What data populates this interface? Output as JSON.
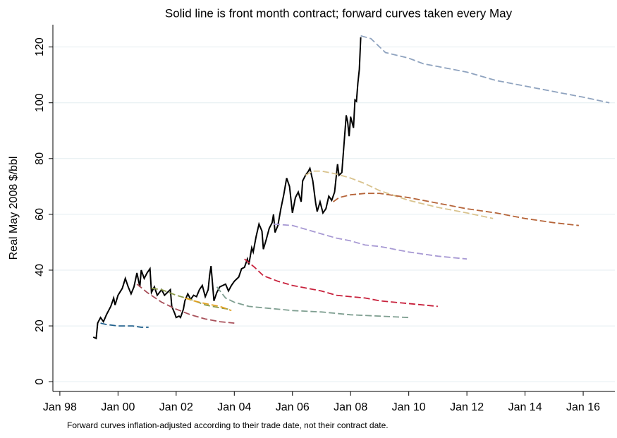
{
  "chart_data": {
    "type": "line",
    "title": "Solid line is front month contract; forward curves taken every May",
    "y_label": "Real May 2008 $/bbl",
    "note": "Forward curves inflation-adjusted according to their trade date, not their contract date.",
    "xlim": [
      1997.76,
      2017.09
    ],
    "ylim": [
      -3.5,
      128
    ],
    "xticks": [
      {
        "value": 1998,
        "label": "Jan 98"
      },
      {
        "value": 2000,
        "label": "Jan 00"
      },
      {
        "value": 2002,
        "label": "Jan 02"
      },
      {
        "value": 2004,
        "label": "Jan 04"
      },
      {
        "value": 2006,
        "label": "Jan 06"
      },
      {
        "value": 2008,
        "label": "Jan 08"
      },
      {
        "value": 2010,
        "label": "Jan 10"
      },
      {
        "value": 2012,
        "label": "Jan 12"
      },
      {
        "value": 2014,
        "label": "Jan 14"
      },
      {
        "value": 2016,
        "label": "Jan 16"
      }
    ],
    "yticks": [
      0,
      20,
      40,
      60,
      80,
      100,
      120
    ],
    "grid": true,
    "series": [
      {
        "color": "#000000",
        "dash": false,
        "x": [
          1999.15,
          1999.25,
          1999.3,
          1999.4,
          1999.5,
          1999.6,
          1999.75,
          1999.85,
          1999.9,
          2000.0,
          2000.15,
          2000.25,
          2000.35,
          2000.45,
          2000.55,
          2000.65,
          2000.75,
          2000.8,
          2000.9,
          2001.0,
          2001.1,
          2001.15,
          2001.25,
          2001.35,
          2001.5,
          2001.6,
          2001.7,
          2001.8,
          2001.85,
          2001.95,
          2002.0,
          2002.1,
          2002.15,
          2002.25,
          2002.3,
          2002.4,
          2002.5,
          2002.6,
          2002.7,
          2002.8,
          2002.9,
          2003.0,
          2003.1,
          2003.15,
          2003.2,
          2003.3,
          2003.4,
          2003.5,
          2003.7,
          2003.8,
          2003.9,
          2004.0,
          2004.15,
          2004.25,
          2004.35,
          2004.45,
          2004.5,
          2004.6,
          2004.65,
          2004.75,
          2004.85,
          2004.95,
          2005.0,
          2005.1,
          2005.2,
          2005.3,
          2005.35,
          2005.4,
          2005.5,
          2005.6,
          2005.7,
          2005.8,
          2005.9,
          2006.0,
          2006.1,
          2006.2,
          2006.3,
          2006.35,
          2006.45,
          2006.55,
          2006.6,
          2006.7,
          2006.8,
          2006.85,
          2006.95,
          2007.05,
          2007.15,
          2007.25,
          2007.35,
          2007.45,
          2007.55,
          2007.6,
          2007.7,
          2007.75,
          2007.85,
          2007.9,
          2007.95,
          2008.0,
          2008.1,
          2008.15,
          2008.2,
          2008.25,
          2008.3,
          2008.35
        ],
        "values": [
          16,
          15.5,
          21,
          23,
          21.5,
          24,
          27,
          30,
          27.5,
          31,
          33.5,
          37,
          34,
          31.5,
          34,
          39,
          34,
          40,
          37,
          39,
          40.5,
          32,
          34,
          31,
          33,
          31,
          32,
          33,
          27,
          24.5,
          23,
          23.5,
          23,
          26,
          29,
          31.5,
          29.5,
          31,
          30.5,
          33,
          34.5,
          30.5,
          33,
          38,
          41.5,
          29,
          32,
          34,
          35,
          32.5,
          34.5,
          36,
          37.5,
          40.5,
          41,
          44,
          42,
          48,
          46.5,
          52,
          56.5,
          54,
          47.5,
          51,
          55,
          57,
          60,
          53.5,
          56,
          62,
          67,
          73,
          70,
          60.5,
          66,
          68,
          64.5,
          72,
          74,
          75.5,
          76.5,
          72,
          64,
          61,
          64.5,
          60.5,
          62,
          66.5,
          65,
          68,
          78,
          74,
          75,
          82,
          95.5,
          93,
          88,
          95,
          91,
          101,
          100.5,
          107,
          112,
          123.5
        ]
      },
      {
        "color": "#1f5f8b",
        "dash": true,
        "x": [
          1999.4,
          1999.6,
          2000.0,
          2000.5,
          2000.8,
          2001.05
        ],
        "values": [
          21,
          20.5,
          20,
          20,
          19.5,
          19.5
        ]
      },
      {
        "color": "#a8505a",
        "dash": true,
        "x": [
          2000.65,
          2001.0,
          2001.5,
          2002.0,
          2002.5,
          2003.0,
          2003.5,
          2004.0
        ],
        "values": [
          35,
          32,
          28.5,
          26,
          24,
          22.5,
          21.5,
          21
        ]
      },
      {
        "color": "#8c9a4a",
        "dash": true,
        "x": [
          2001.15,
          2001.5,
          2002.0,
          2002.5,
          2003.0,
          2003.5,
          2003.8
        ],
        "values": [
          33.5,
          33,
          31,
          29.5,
          27.5,
          26.5,
          26
        ]
      },
      {
        "color": "#e0a020",
        "dash": true,
        "x": [
          2002.3,
          2002.6,
          2003.0,
          2003.5,
          2003.9
        ],
        "values": [
          30,
          29,
          28,
          27,
          25.5
        ]
      },
      {
        "color": "#7f9f91",
        "dash": true,
        "x": [
          2003.4,
          2003.7,
          2004.0,
          2004.5,
          2005.0,
          2006.0,
          2007.0,
          2008.0,
          2009.0,
          2010.0
        ],
        "values": [
          34,
          30,
          28.5,
          27,
          26.5,
          25.5,
          25,
          24,
          23.5,
          23
        ]
      },
      {
        "color": "#c8213c",
        "dash": true,
        "x": [
          2004.35,
          2004.7,
          2005.0,
          2005.5,
          2006.0,
          2006.5,
          2007.0,
          2007.5,
          2008.0,
          2008.5,
          2009.0,
          2010.0,
          2011.0
        ],
        "values": [
          44,
          41,
          38,
          36,
          34.5,
          33.5,
          32.5,
          31,
          30.5,
          30,
          29,
          28,
          27
        ]
      },
      {
        "color": "#a89ad4",
        "dash": true,
        "x": [
          2005.35,
          2006.0,
          2006.5,
          2007.0,
          2007.5,
          2008.0,
          2008.5,
          2009.0,
          2010.0,
          2011.0,
          2012.0
        ],
        "values": [
          56.5,
          56,
          54.5,
          53,
          51.5,
          50.5,
          49,
          48.5,
          46.5,
          45,
          44
        ]
      },
      {
        "color": "#d9c38e",
        "dash": true,
        "x": [
          2006.45,
          2006.7,
          2007.0,
          2007.5,
          2008.0,
          2008.5,
          2009.0,
          2010.0,
          2011.0,
          2012.0,
          2012.9
        ],
        "values": [
          74,
          75.5,
          75.5,
          74.5,
          73,
          71,
          68.5,
          65,
          62.5,
          60.5,
          58.5
        ]
      },
      {
        "color": "#b6653a",
        "dash": true,
        "x": [
          2007.4,
          2007.6,
          2008.0,
          2008.5,
          2009.0,
          2010.0,
          2011.0,
          2012.0,
          2013.0,
          2014.0,
          2015.0,
          2015.85
        ],
        "values": [
          64.5,
          66,
          67,
          67.5,
          67.5,
          66,
          64,
          62,
          60.5,
          58.5,
          57,
          56
        ]
      },
      {
        "color": "#8fa3bf",
        "dash": true,
        "x": [
          2008.35,
          2008.7,
          2009.0,
          2009.2,
          2010.0,
          2010.5,
          2011.0,
          2012.0,
          2013.0,
          2014.0,
          2015.0,
          2016.0,
          2016.9
        ],
        "values": [
          124,
          123,
          120,
          118,
          116,
          114,
          113,
          111,
          108,
          106,
          104,
          102,
          100
        ]
      }
    ]
  }
}
